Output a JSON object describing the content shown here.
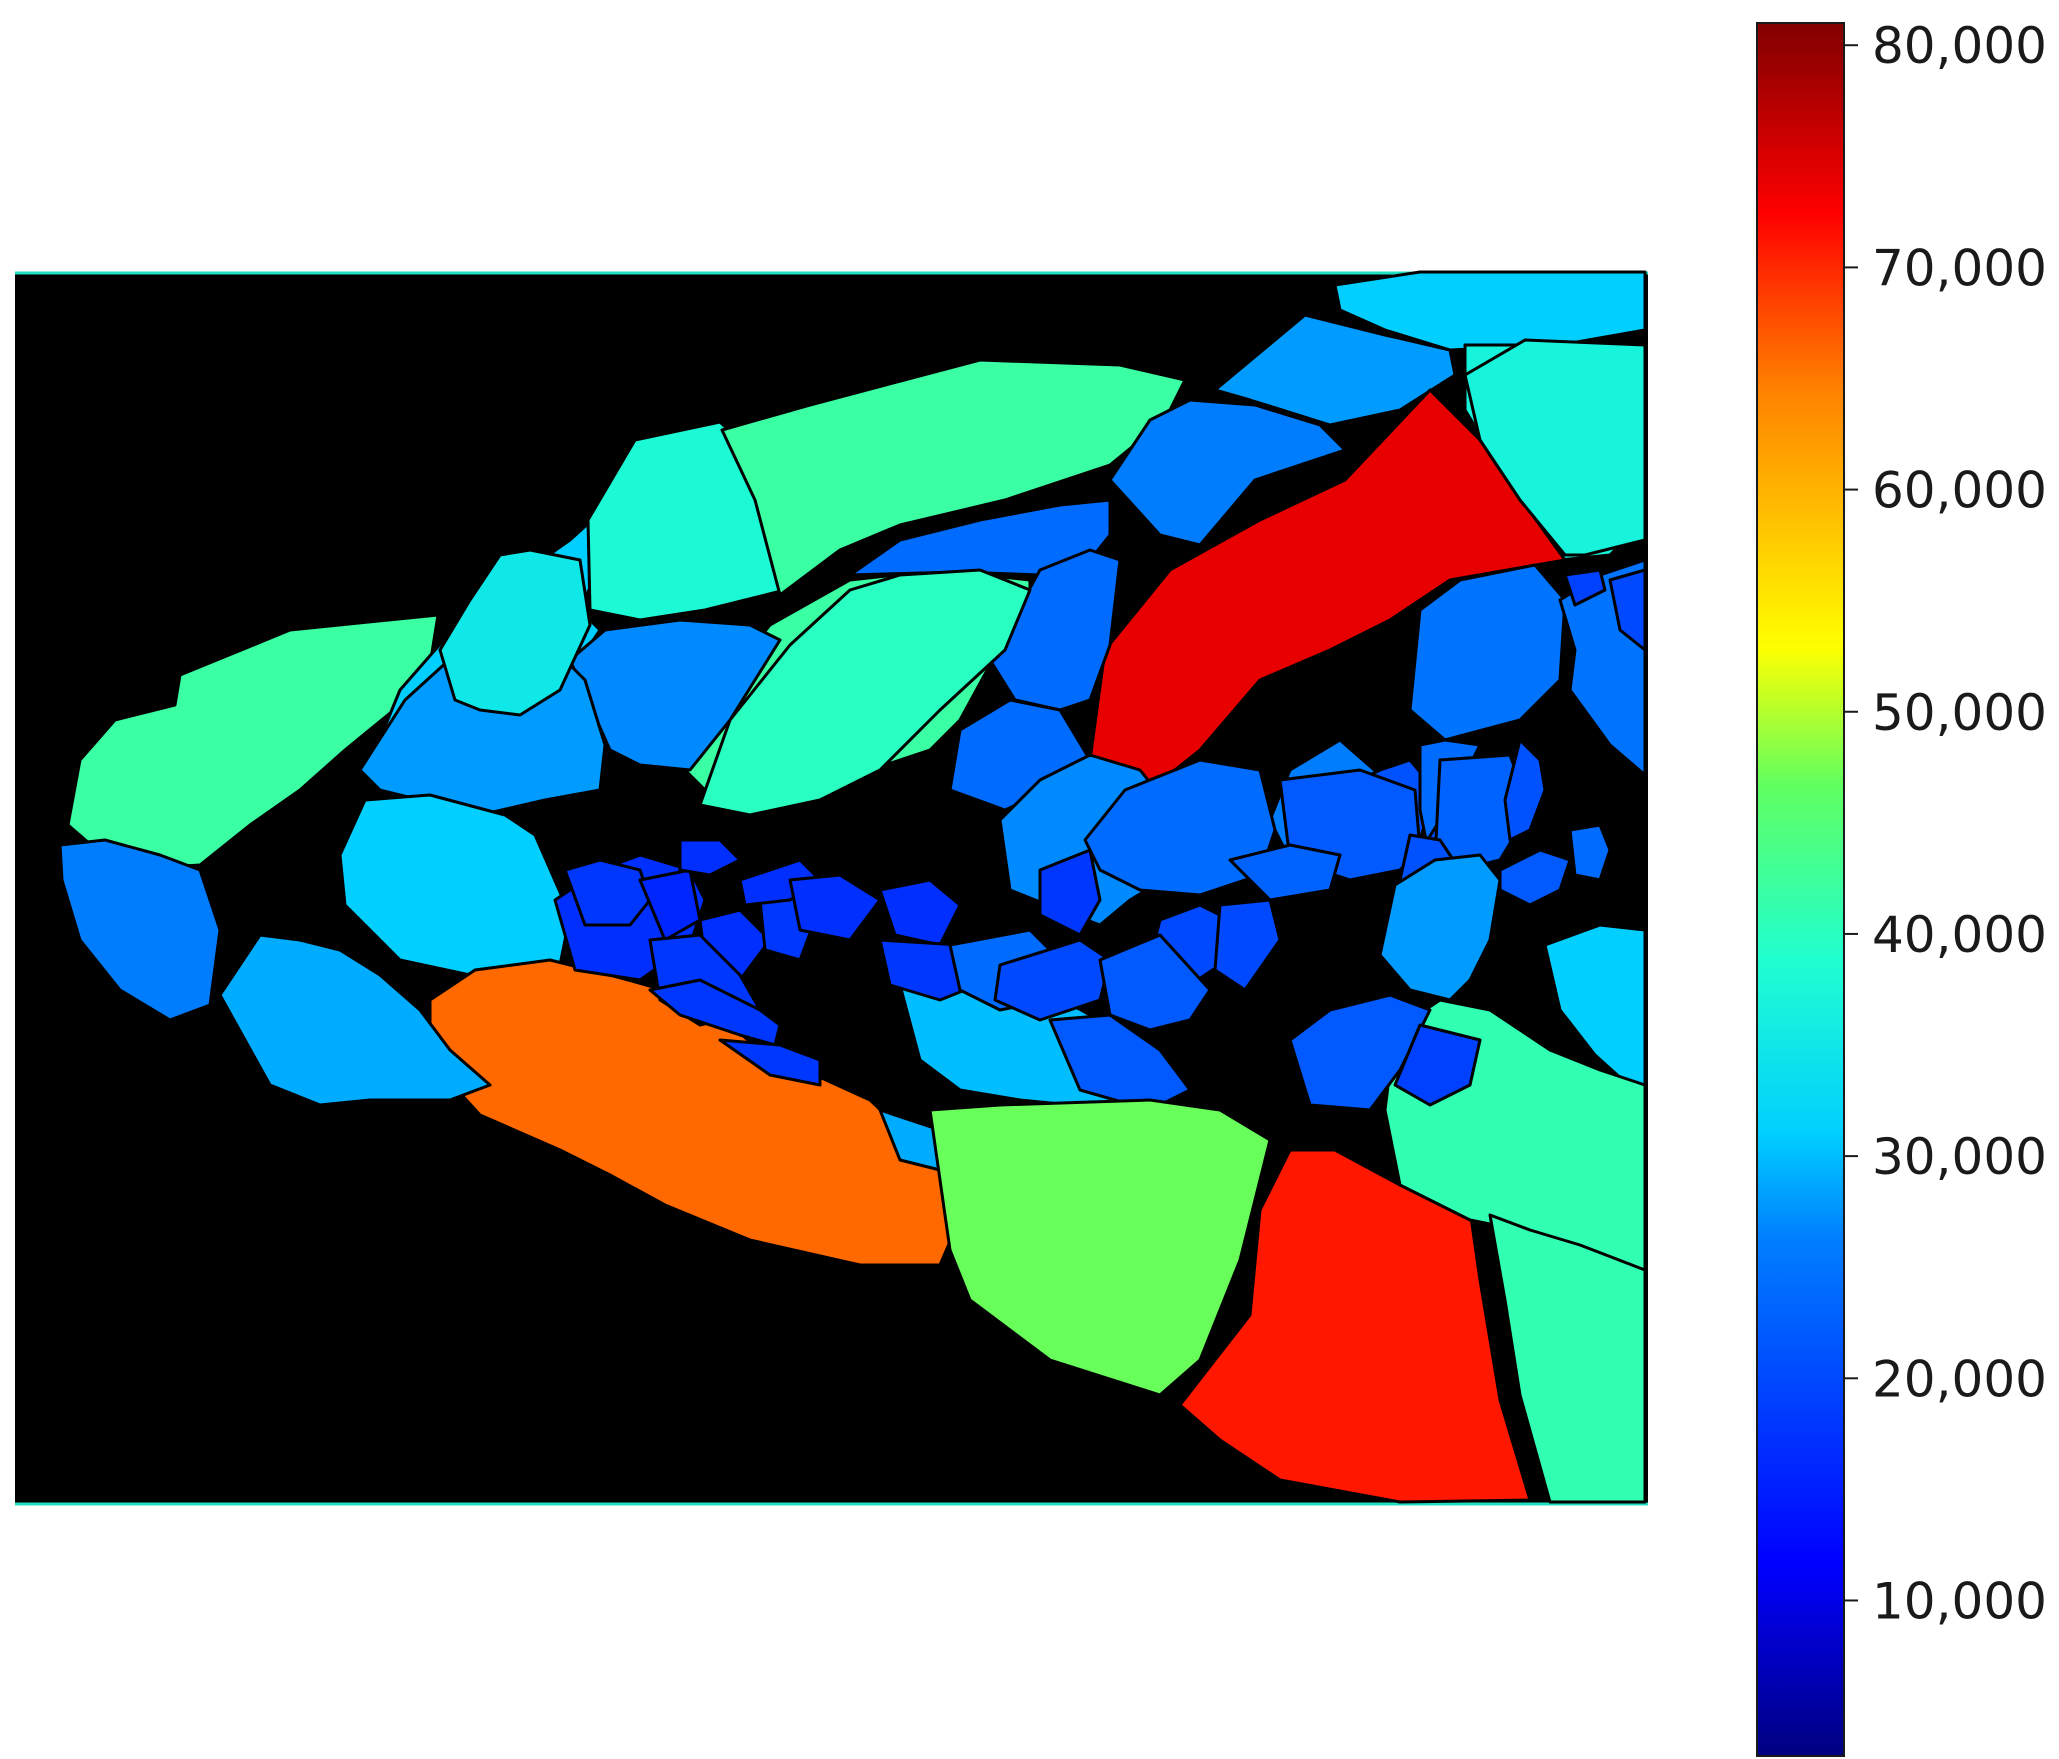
{
  "chart_data": {
    "type": "heatmap",
    "title": "",
    "xlabel": "",
    "ylabel": "",
    "description": "Segmentation map: each region colored by its value on a jet colormap; background black",
    "background_color": "#000000",
    "colormap": {
      "name": "jet",
      "range": [
        3000,
        81000
      ],
      "stops": [
        "#000080",
        "#0000ff",
        "#0080ff",
        "#00ffff",
        "#80ff80",
        "#ffff00",
        "#ff8000",
        "#ff0000",
        "#800000"
      ],
      "ticks": [
        {
          "value": 10000,
          "label": "10,000"
        },
        {
          "value": 20000,
          "label": "20,000"
        },
        {
          "value": 30000,
          "label": "30,000"
        },
        {
          "value": 40000,
          "label": "40,000"
        },
        {
          "value": 50000,
          "label": "50,000"
        },
        {
          "value": 60000,
          "label": "60,000"
        },
        {
          "value": 70000,
          "label": "70,000"
        },
        {
          "value": 80000,
          "label": "80,000"
        }
      ]
    },
    "regions": [
      {
        "id": "r01",
        "value": 42000
      },
      {
        "id": "r02",
        "value": 31000
      },
      {
        "id": "r03",
        "value": 38000
      },
      {
        "id": "r04",
        "value": 42000
      },
      {
        "id": "r05",
        "value": 31000
      },
      {
        "id": "r06",
        "value": 28000
      },
      {
        "id": "r07",
        "value": 37000
      },
      {
        "id": "r08",
        "value": 26000
      },
      {
        "id": "r09",
        "value": 42000
      },
      {
        "id": "r10",
        "value": 24000
      },
      {
        "id": "r11",
        "value": 27000
      },
      {
        "id": "r12",
        "value": 28000
      },
      {
        "id": "r13",
        "value": 74000
      },
      {
        "id": "r14",
        "value": 31000
      },
      {
        "id": "r15",
        "value": 35000
      },
      {
        "id": "r16",
        "value": 26000
      },
      {
        "id": "r17",
        "value": 24000
      },
      {
        "id": "r18",
        "value": 24000
      },
      {
        "id": "r19",
        "value": 40000
      },
      {
        "id": "r20",
        "value": 37000
      },
      {
        "id": "r21",
        "value": 25000
      },
      {
        "id": "r22",
        "value": 25000
      },
      {
        "id": "r23",
        "value": 27000
      },
      {
        "id": "r24",
        "value": 26000
      },
      {
        "id": "r25",
        "value": 21000
      },
      {
        "id": "r26",
        "value": 24000
      },
      {
        "id": "r27",
        "value": 21000
      },
      {
        "id": "r28",
        "value": 22000
      },
      {
        "id": "r29",
        "value": 23000
      },
      {
        "id": "r30",
        "value": 21000
      },
      {
        "id": "r31",
        "value": 19000
      },
      {
        "id": "r32",
        "value": 20000
      },
      {
        "id": "r33",
        "value": 21000
      },
      {
        "id": "r34",
        "value": 22000
      },
      {
        "id": "r35",
        "value": 24000
      },
      {
        "id": "r36",
        "value": 31000
      },
      {
        "id": "r37",
        "value": 28000
      },
      {
        "id": "r38",
        "value": 66000
      },
      {
        "id": "r39",
        "value": 29000
      },
      {
        "id": "r40",
        "value": 30000
      },
      {
        "id": "r41",
        "value": 17000
      },
      {
        "id": "r42",
        "value": 18000
      },
      {
        "id": "r43",
        "value": 16000
      },
      {
        "id": "r44",
        "value": 17000
      },
      {
        "id": "r45",
        "value": 18000
      },
      {
        "id": "r46",
        "value": 18000
      },
      {
        "id": "r47",
        "value": 17000
      },
      {
        "id": "r48",
        "value": 17000
      },
      {
        "id": "r49",
        "value": 18000
      },
      {
        "id": "r50",
        "value": 18000
      },
      {
        "id": "r51",
        "value": 17000
      },
      {
        "id": "r52",
        "value": 17000
      },
      {
        "id": "r53",
        "value": 18000
      },
      {
        "id": "r54",
        "value": 24000
      },
      {
        "id": "r55",
        "value": 29000
      },
      {
        "id": "r56",
        "value": 24000
      },
      {
        "id": "r57",
        "value": 23000
      },
      {
        "id": "r58",
        "value": 20000
      },
      {
        "id": "r59",
        "value": 20000
      },
      {
        "id": "r60",
        "value": 18000
      },
      {
        "id": "r61",
        "value": 20000
      },
      {
        "id": "r62",
        "value": 22000
      },
      {
        "id": "r63",
        "value": 22000
      },
      {
        "id": "r64",
        "value": 47000
      },
      {
        "id": "r65",
        "value": 71000
      },
      {
        "id": "r66",
        "value": 41000
      },
      {
        "id": "r67",
        "value": 41000
      },
      {
        "id": "r68",
        "value": 22000
      },
      {
        "id": "r69",
        "value": 19000
      }
    ]
  }
}
